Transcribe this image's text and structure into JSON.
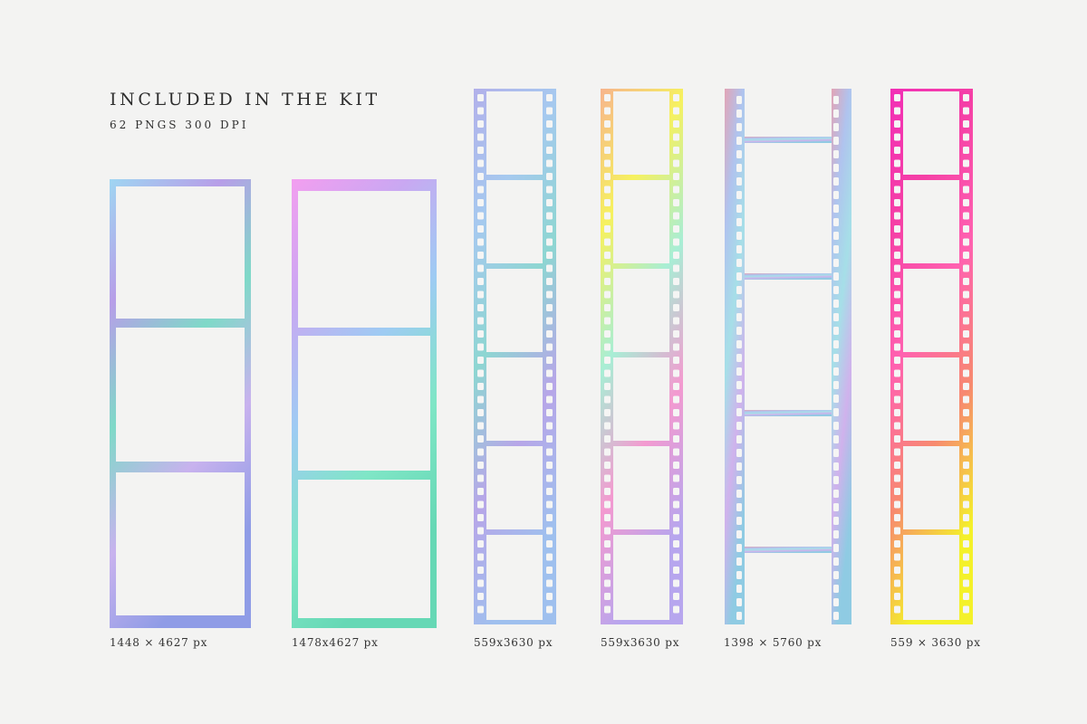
{
  "header": {
    "title": "INCLUDED IN THE KIT",
    "subtitle": "62 PNGS 300 DPI"
  },
  "items": [
    {
      "type": "photo-strip",
      "frames": 3,
      "caption": "1448 × 4627 px",
      "colors": [
        "#9fd6f2",
        "#b79ee8",
        "#7fd9c8",
        "#c8b2ee",
        "#8f9ce6"
      ]
    },
    {
      "type": "photo-strip",
      "frames": 3,
      "caption": "1478x4627 px",
      "colors": [
        "#f39ef0",
        "#c9a8f2",
        "#9ecbf3",
        "#7fe6c6",
        "#66d8b5"
      ]
    },
    {
      "type": "film-strip",
      "frames": 6,
      "caption": "559x3630 px",
      "colors": [
        "#b2b0ea",
        "#a6c9ef",
        "#8ed6d2",
        "#b7a6e8",
        "#9fc0ee"
      ]
    },
    {
      "type": "film-strip",
      "frames": 6,
      "caption": "559x3630 px",
      "colors": [
        "#f7b48d",
        "#f6f15f",
        "#a8eed5",
        "#f39ad0",
        "#b7a6ee"
      ]
    },
    {
      "type": "film-strip-wide",
      "frames": 4,
      "caption": "1398 × 5760 px",
      "colors": [
        "#e2a4b6",
        "#b0c3ee",
        "#a6dfe8",
        "#d0b2ec",
        "#8fcbe3"
      ]
    },
    {
      "type": "film-strip",
      "frames": 6,
      "caption": "559 × 3630 px",
      "colors": [
        "#f22fb6",
        "#f540a6",
        "#ff62b0",
        "#f78a6f",
        "#f4f12a"
      ]
    }
  ]
}
